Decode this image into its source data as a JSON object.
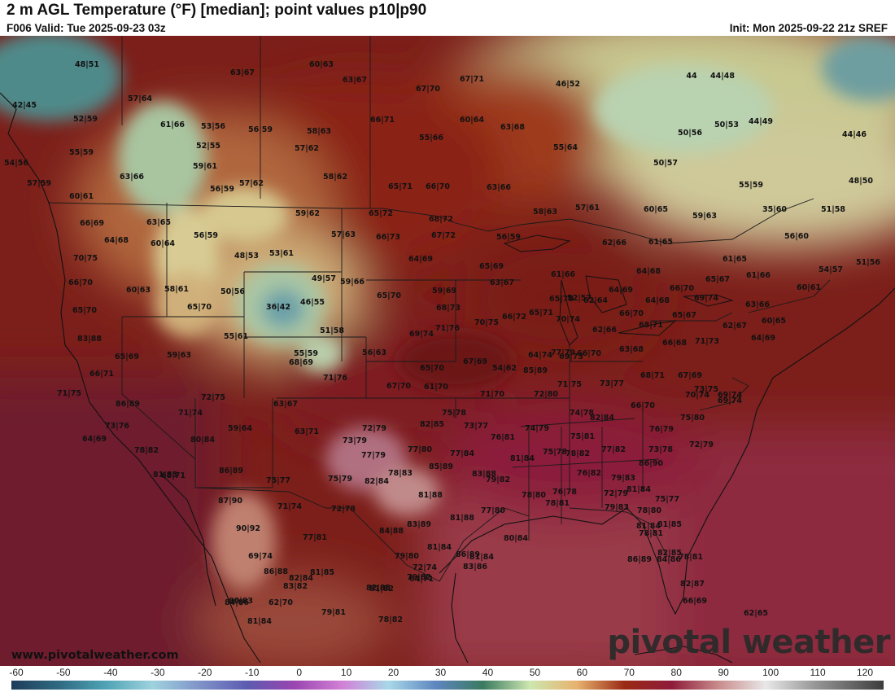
{
  "header": {
    "title": "2 m AGL Temperature (°F) [median]; point values p10|p90",
    "valid": "F006 Valid: Tue 2025-09-23 03z",
    "init": "Init: Mon 2025-09-22 21z SREF"
  },
  "footer": {
    "website": "www.pivotalweather.com",
    "brand": "pivotal weather"
  },
  "colorbar": {
    "ticks": [
      "-60",
      "-50",
      "-40",
      "-30",
      "-20",
      "-10",
      "0",
      "10",
      "20",
      "30",
      "40",
      "50",
      "60",
      "70",
      "80",
      "90",
      "100",
      "110",
      "120"
    ],
    "range": [
      -60,
      125
    ],
    "stops": [
      {
        "t": -60,
        "c": "#1e3c5a"
      },
      {
        "t": -50,
        "c": "#2f6a82"
      },
      {
        "t": -40,
        "c": "#4fa3b5"
      },
      {
        "t": -30,
        "c": "#9fd2de"
      },
      {
        "t": -20,
        "c": "#7f93c8"
      },
      {
        "t": -10,
        "c": "#5c5bb0"
      },
      {
        "t": 0,
        "c": "#9a45b0"
      },
      {
        "t": 10,
        "c": "#d27fd6"
      },
      {
        "t": 20,
        "c": "#a8d8e8"
      },
      {
        "t": 30,
        "c": "#5e86c0"
      },
      {
        "t": 40,
        "c": "#3a7a60"
      },
      {
        "t": 50,
        "c": "#cde7b0"
      },
      {
        "t": 60,
        "c": "#e7b26e"
      },
      {
        "t": 70,
        "c": "#9a2a14"
      },
      {
        "t": 80,
        "c": "#8e1c3a"
      },
      {
        "t": 90,
        "c": "#c98c8c"
      },
      {
        "t": 100,
        "c": "#e8e8e8"
      },
      {
        "t": 110,
        "c": "#9a9a9a"
      },
      {
        "t": 125,
        "c": "#3c3c3c"
      }
    ]
  },
  "point_values": [
    "48|51",
    "63|67",
    "60|63",
    "63|67",
    "67|71",
    "46|52",
    "44",
    "44|48",
    "42|45",
    "57|64",
    "67|70",
    "52|59",
    "61|66",
    "53|56",
    "56|59",
    "58|63",
    "66|71",
    "60|64",
    "63|68",
    "50|53",
    "44|49",
    "55|59",
    "52|55",
    "55|66",
    "50|56",
    "44|46",
    "55|64",
    "54|56",
    "59|61",
    "57|62",
    "50|57",
    "63|66",
    "58|62",
    "57|59",
    "57|62",
    "65|71",
    "66|70",
    "63|66",
    "55|59",
    "48|50",
    "60|61",
    "56|59",
    "59|62",
    "65|72",
    "68|72",
    "58|63",
    "57|61",
    "60|65",
    "59|63",
    "35|60",
    "51|58",
    "66|69",
    "63|65",
    "56|59",
    "64|68",
    "60|64",
    "57|63",
    "66|73",
    "67|72",
    "56|59",
    "62|66",
    "61|65",
    "56|60",
    "70|75",
    "48|53",
    "53|61",
    "64|69",
    "65|69",
    "61|65",
    "61|66",
    "54|57",
    "51|56",
    "66|70",
    "50|56",
    "49|57",
    "59|66",
    "63|67",
    "61|66",
    "64|68",
    "65|67",
    "60|61",
    "60|63",
    "58|61",
    "36|42",
    "46|55",
    "65|70",
    "59|69",
    "64|69",
    "66|70",
    "69|74",
    "52|57",
    "65|70",
    "65|70",
    "65|70",
    "62|64",
    "68|73",
    "66|70",
    "64|68",
    "63|66",
    "83|88",
    "55|61",
    "51|58",
    "69|74",
    "71|76",
    "70|75",
    "66|72",
    "65|71",
    "70|74",
    "62|66",
    "68|71",
    "65|67",
    "60|65",
    "64|69",
    "62|67",
    "65|69",
    "59|63",
    "55|59",
    "56|63",
    "64|74",
    "66|70",
    "63|68",
    "66|68",
    "71|73",
    "68|69",
    "67|69",
    "54|62",
    "77|79",
    "69|73",
    "66|71",
    "65|70",
    "85|89",
    "71|75",
    "73|77",
    "68|71",
    "67|69",
    "71|76",
    "67|70",
    "61|70",
    "73|75",
    "71|75",
    "71|70",
    "72|80",
    "70|74",
    "69|74",
    "69|74",
    "72|75",
    "86|89",
    "63|67",
    "75|78",
    "74|78",
    "66|70",
    "71|74",
    "82|84",
    "73|76",
    "82|85",
    "76|79",
    "59|64",
    "73|77",
    "74|79",
    "75|80",
    "72|79",
    "63|71",
    "73|79",
    "75|81",
    "64|69",
    "80|84",
    "72|79",
    "76|81",
    "77|82",
    "73|78",
    "75|78",
    "78|82",
    "86|90",
    "81|84",
    "77|80",
    "77|84",
    "77|79",
    "78|82",
    "75|77",
    "68|71",
    "86|89",
    "85|89",
    "76|82",
    "75|79",
    "78|83",
    "83|88",
    "79|82",
    "81|85",
    "79|83",
    "82|84",
    "81|84",
    "75|77",
    "72|79",
    "87|90",
    "78|80",
    "76|78",
    "81|88",
    "71|74",
    "72|78",
    "77|80",
    "78|81",
    "79|83",
    "78|80",
    "81|88",
    "81|84",
    "83|89",
    "90|92",
    "84|88",
    "78|81",
    "77|81",
    "81|85",
    "80|84",
    "81|84",
    "86|89",
    "86|89",
    "82|85",
    "69|74",
    "79|80",
    "78|81",
    "81|84",
    "86|88",
    "82|84",
    "72|74",
    "83|86",
    "79|82",
    "80|83",
    "83|82",
    "81|82",
    "81|85",
    "82|85",
    "84|86",
    "64|71",
    "82|87",
    "66|69",
    "84|86",
    "62|70",
    "81|84",
    "79|81",
    "62|65",
    "78|82"
  ]
}
